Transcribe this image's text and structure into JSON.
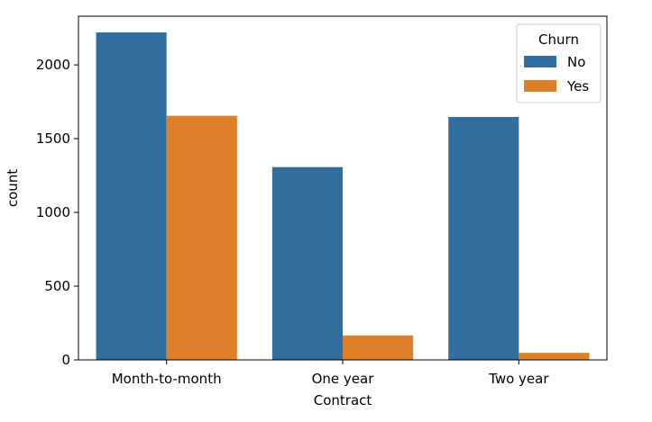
{
  "chart_data": {
    "type": "bar",
    "title": "",
    "xlabel": "Contract",
    "ylabel": "count",
    "categories": [
      "Month-to-month",
      "One year",
      "Two year"
    ],
    "series": [
      {
        "name": "No",
        "values": [
          2220,
          1307,
          1647
        ],
        "color": "#2f6e9e"
      },
      {
        "name": "Yes",
        "values": [
          1655,
          166,
          48
        ],
        "color": "#e07f2a"
      }
    ],
    "ylim": [
      0,
      2330
    ],
    "yticks": [
      0,
      500,
      1000,
      1500,
      2000
    ],
    "grid": false,
    "legend": {
      "title": "Churn",
      "placement": "top-right",
      "entries": [
        "No",
        "Yes"
      ]
    }
  }
}
